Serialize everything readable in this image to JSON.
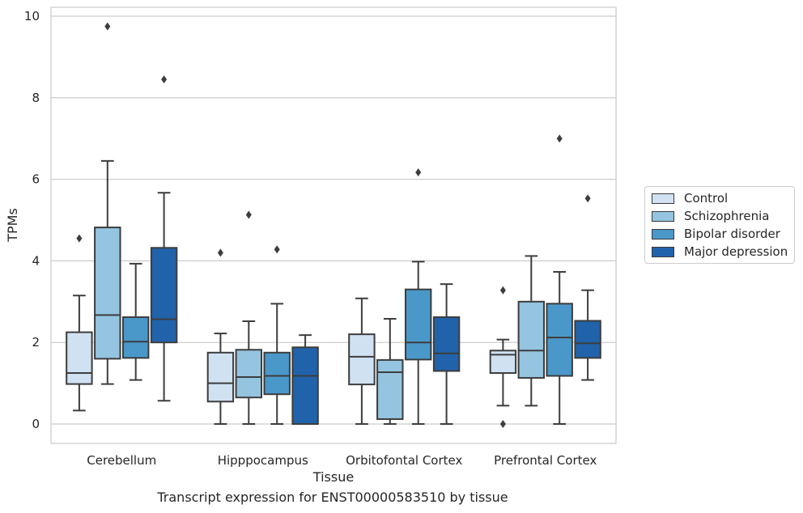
{
  "chart_data": {
    "type": "boxplot",
    "xlabel": "Tissue",
    "ylabel": "TPMs",
    "ylim": [
      -0.45,
      10.2
    ],
    "yticks": [
      0,
      2,
      4,
      6,
      8,
      10
    ],
    "grid": "horizontal",
    "legend_placement": "outside-right",
    "categories": [
      "Cerebellum",
      "Hipppocampus",
      "Orbitofontal Cortex",
      "Prefrontal Cortex"
    ],
    "series": [
      {
        "name": "Control",
        "color": "#d0e1f2",
        "boxes": [
          {
            "whislo": 0.33,
            "q1": 0.98,
            "med": 1.25,
            "q3": 2.25,
            "whishi": 3.15,
            "fliers": [
              4.55
            ]
          },
          {
            "whislo": 0.0,
            "q1": 0.55,
            "med": 1.0,
            "q3": 1.75,
            "whishi": 2.22,
            "fliers": [
              4.2
            ]
          },
          {
            "whislo": 0.0,
            "q1": 0.97,
            "med": 1.65,
            "q3": 2.2,
            "whishi": 3.08,
            "fliers": []
          },
          {
            "whislo": 0.45,
            "q1": 1.25,
            "med": 1.7,
            "q3": 1.8,
            "whishi": 2.07,
            "fliers": [
              0.0,
              3.28
            ]
          }
        ]
      },
      {
        "name": "Schizophrenia",
        "color": "#94c4df",
        "boxes": [
          {
            "whislo": 0.98,
            "q1": 1.6,
            "med": 2.67,
            "q3": 4.82,
            "whishi": 6.45,
            "fliers": [
              9.75
            ]
          },
          {
            "whislo": 0.0,
            "q1": 0.65,
            "med": 1.15,
            "q3": 1.82,
            "whishi": 2.52,
            "fliers": [
              5.13
            ]
          },
          {
            "whislo": 0.0,
            "q1": 0.12,
            "med": 1.27,
            "q3": 1.57,
            "whishi": 2.58,
            "fliers": []
          },
          {
            "whislo": 0.45,
            "q1": 1.13,
            "med": 1.8,
            "q3": 3.0,
            "whishi": 4.12,
            "fliers": []
          }
        ]
      },
      {
        "name": "Bipolar disorder",
        "color": "#4a98c9",
        "boxes": [
          {
            "whislo": 1.08,
            "q1": 1.62,
            "med": 2.02,
            "q3": 2.62,
            "whishi": 3.93,
            "fliers": []
          },
          {
            "whislo": 0.0,
            "q1": 0.73,
            "med": 1.18,
            "q3": 1.75,
            "whishi": 2.95,
            "fliers": [
              4.28
            ]
          },
          {
            "whislo": 0.0,
            "q1": 1.58,
            "med": 2.0,
            "q3": 3.3,
            "whishi": 3.98,
            "fliers": [
              6.17
            ]
          },
          {
            "whislo": 0.0,
            "q1": 1.18,
            "med": 2.12,
            "q3": 2.95,
            "whishi": 3.73,
            "fliers": [
              7.0
            ]
          }
        ]
      },
      {
        "name": "Major depression",
        "color": "#2163aa",
        "boxes": [
          {
            "whislo": 0.57,
            "q1": 2.0,
            "med": 2.57,
            "q3": 4.32,
            "whishi": 5.67,
            "fliers": [
              8.45
            ]
          },
          {
            "whislo": 0.0,
            "q1": 0.0,
            "med": 1.18,
            "q3": 1.88,
            "whishi": 2.18,
            "fliers": []
          },
          {
            "whislo": 0.0,
            "q1": 1.3,
            "med": 1.73,
            "q3": 2.62,
            "whishi": 3.43,
            "fliers": []
          },
          {
            "whislo": 1.08,
            "q1": 1.62,
            "med": 1.98,
            "q3": 2.53,
            "whishi": 3.28,
            "fliers": [
              5.53
            ]
          }
        ]
      }
    ]
  },
  "caption": "Transcript expression for ENST00000583510 by tissue"
}
